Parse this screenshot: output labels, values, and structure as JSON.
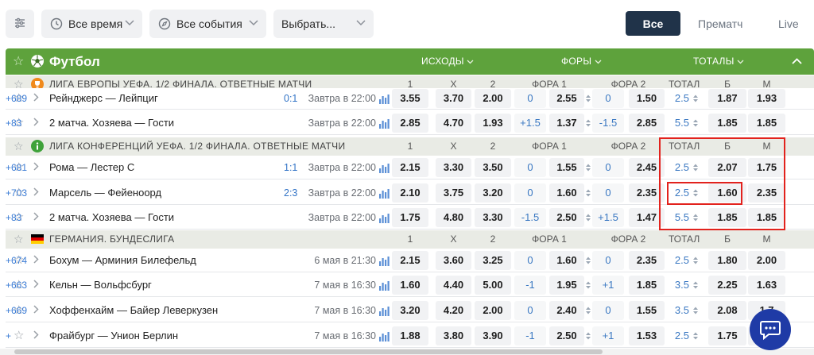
{
  "filters": {
    "settings_icon": "sliders-icon",
    "time_label": "Все время",
    "events_label": "Все события",
    "choose_label": "Выбрать...",
    "tabs": [
      "Все",
      "Прематч",
      "Live"
    ]
  },
  "sport_header": {
    "title": "Футбол",
    "columns": [
      "ИСХОДЫ",
      "ФОРЫ",
      "ТОТАЛЫ"
    ],
    "accent_color": "#5ea23c"
  },
  "col_headers": {
    "h1": "1",
    "hx": "X",
    "h2": "2",
    "fora1": "ФОРА 1",
    "fora2": "ФОРА 2",
    "total": "ТОТАЛ",
    "b": "Б",
    "m": "М"
  },
  "sections": [
    {
      "type": "league",
      "icon": "trophy-orange-icon",
      "title": "ЛИГА ЕВРОПЫ УЕФА. 1/2 ФИНАЛА. ОТВЕТНЫЕ МАТЧИ",
      "show_headers": true
    },
    {
      "type": "match",
      "teams": "Рейнджерс — Лейпциг",
      "score": "0:1",
      "time": "Завтра в 22:00",
      "odds": [
        "3.55",
        "3.70",
        "2.00"
      ],
      "f1": "0",
      "f1k": "2.55",
      "f2": "0",
      "f2k": "1.50",
      "total": "2.5",
      "b": "1.87",
      "m": "1.93",
      "more": "+689",
      "partial": true
    },
    {
      "type": "match",
      "teams": "2 матча. Хозяева — Гости",
      "score": "",
      "time": "Завтра в 22:00",
      "odds": [
        "2.85",
        "4.70",
        "1.93"
      ],
      "f1": "+1.5",
      "f1k": "1.37",
      "f2": "-1.5",
      "f2k": "2.85",
      "total": "5.5",
      "b": "1.85",
      "m": "1.85",
      "more": "+83"
    },
    {
      "type": "league",
      "icon": "info-green-icon",
      "title": "ЛИГА КОНФЕРЕНЦИЙ УЕФА. 1/2 ФИНАЛА. ОТВЕТНЫЕ МАТЧИ",
      "show_headers": true
    },
    {
      "type": "match",
      "teams": "Рома — Лестер С",
      "score": "1:1",
      "time": "Завтра в 22:00",
      "odds": [
        "2.15",
        "3.30",
        "3.50"
      ],
      "f1": "0",
      "f1k": "1.55",
      "f2": "0",
      "f2k": "2.45",
      "total": "2.5",
      "b": "2.07",
      "m": "1.75",
      "more": "+681"
    },
    {
      "type": "match",
      "teams": "Марсель — Фейеноорд",
      "score": "2:3",
      "time": "Завтра в 22:00",
      "odds": [
        "2.10",
        "3.75",
        "3.20"
      ],
      "f1": "0",
      "f1k": "1.60",
      "f2": "0",
      "f2k": "2.35",
      "total": "2.5",
      "b": "1.60",
      "m": "2.35",
      "more": "+703",
      "highlight": true
    },
    {
      "type": "match",
      "teams": "2 матча. Хозяева — Гости",
      "score": "",
      "time": "Завтра в 22:00",
      "odds": [
        "1.75",
        "4.80",
        "3.30"
      ],
      "f1": "-1.5",
      "f1k": "2.50",
      "f2": "+1.5",
      "f2k": "1.47",
      "total": "5.5",
      "b": "1.85",
      "m": "1.85",
      "more": "+83"
    },
    {
      "type": "league",
      "icon": "germany-flag-icon",
      "title": "ГЕРМАНИЯ. БУНДЕСЛИГА",
      "show_headers": true
    },
    {
      "type": "match",
      "teams": "Бохум — Арминия Билефельд",
      "score": "",
      "time": "6 мая в 21:30",
      "odds": [
        "2.15",
        "3.60",
        "3.25"
      ],
      "f1": "0",
      "f1k": "1.60",
      "f2": "0",
      "f2k": "2.35",
      "total": "2.5",
      "b": "1.80",
      "m": "2.00",
      "more": "+674"
    },
    {
      "type": "match",
      "teams": "Кельн — Вольфсбург",
      "score": "",
      "time": "7 мая в 16:30",
      "odds": [
        "1.60",
        "4.40",
        "5.00"
      ],
      "f1": "-1",
      "f1k": "1.95",
      "f2": "+1",
      "f2k": "1.85",
      "total": "3.5",
      "b": "2.25",
      "m": "1.63",
      "more": "+663"
    },
    {
      "type": "match",
      "teams": "Хоффенхайм — Байер Леверкузен",
      "score": "",
      "time": "7 мая в 16:30",
      "odds": [
        "3.20",
        "4.20",
        "2.00"
      ],
      "f1": "0",
      "f1k": "2.40",
      "f2": "0",
      "f2k": "1.55",
      "total": "3.5",
      "b": "2.08",
      "m": "1.7",
      "more": "+669"
    },
    {
      "type": "match",
      "teams": "Фрайбург — Унион Берлин",
      "score": "",
      "time": "7 мая в 16:30",
      "odds": [
        "1.88",
        "3.80",
        "3.90"
      ],
      "f1": "-1",
      "f1k": "2.50",
      "f2": "+1",
      "f2k": "1.53",
      "total": "2.5",
      "b": "1.75",
      "m": "",
      "more": "+"
    }
  ],
  "chat_icon": "chat-bubble-icon"
}
